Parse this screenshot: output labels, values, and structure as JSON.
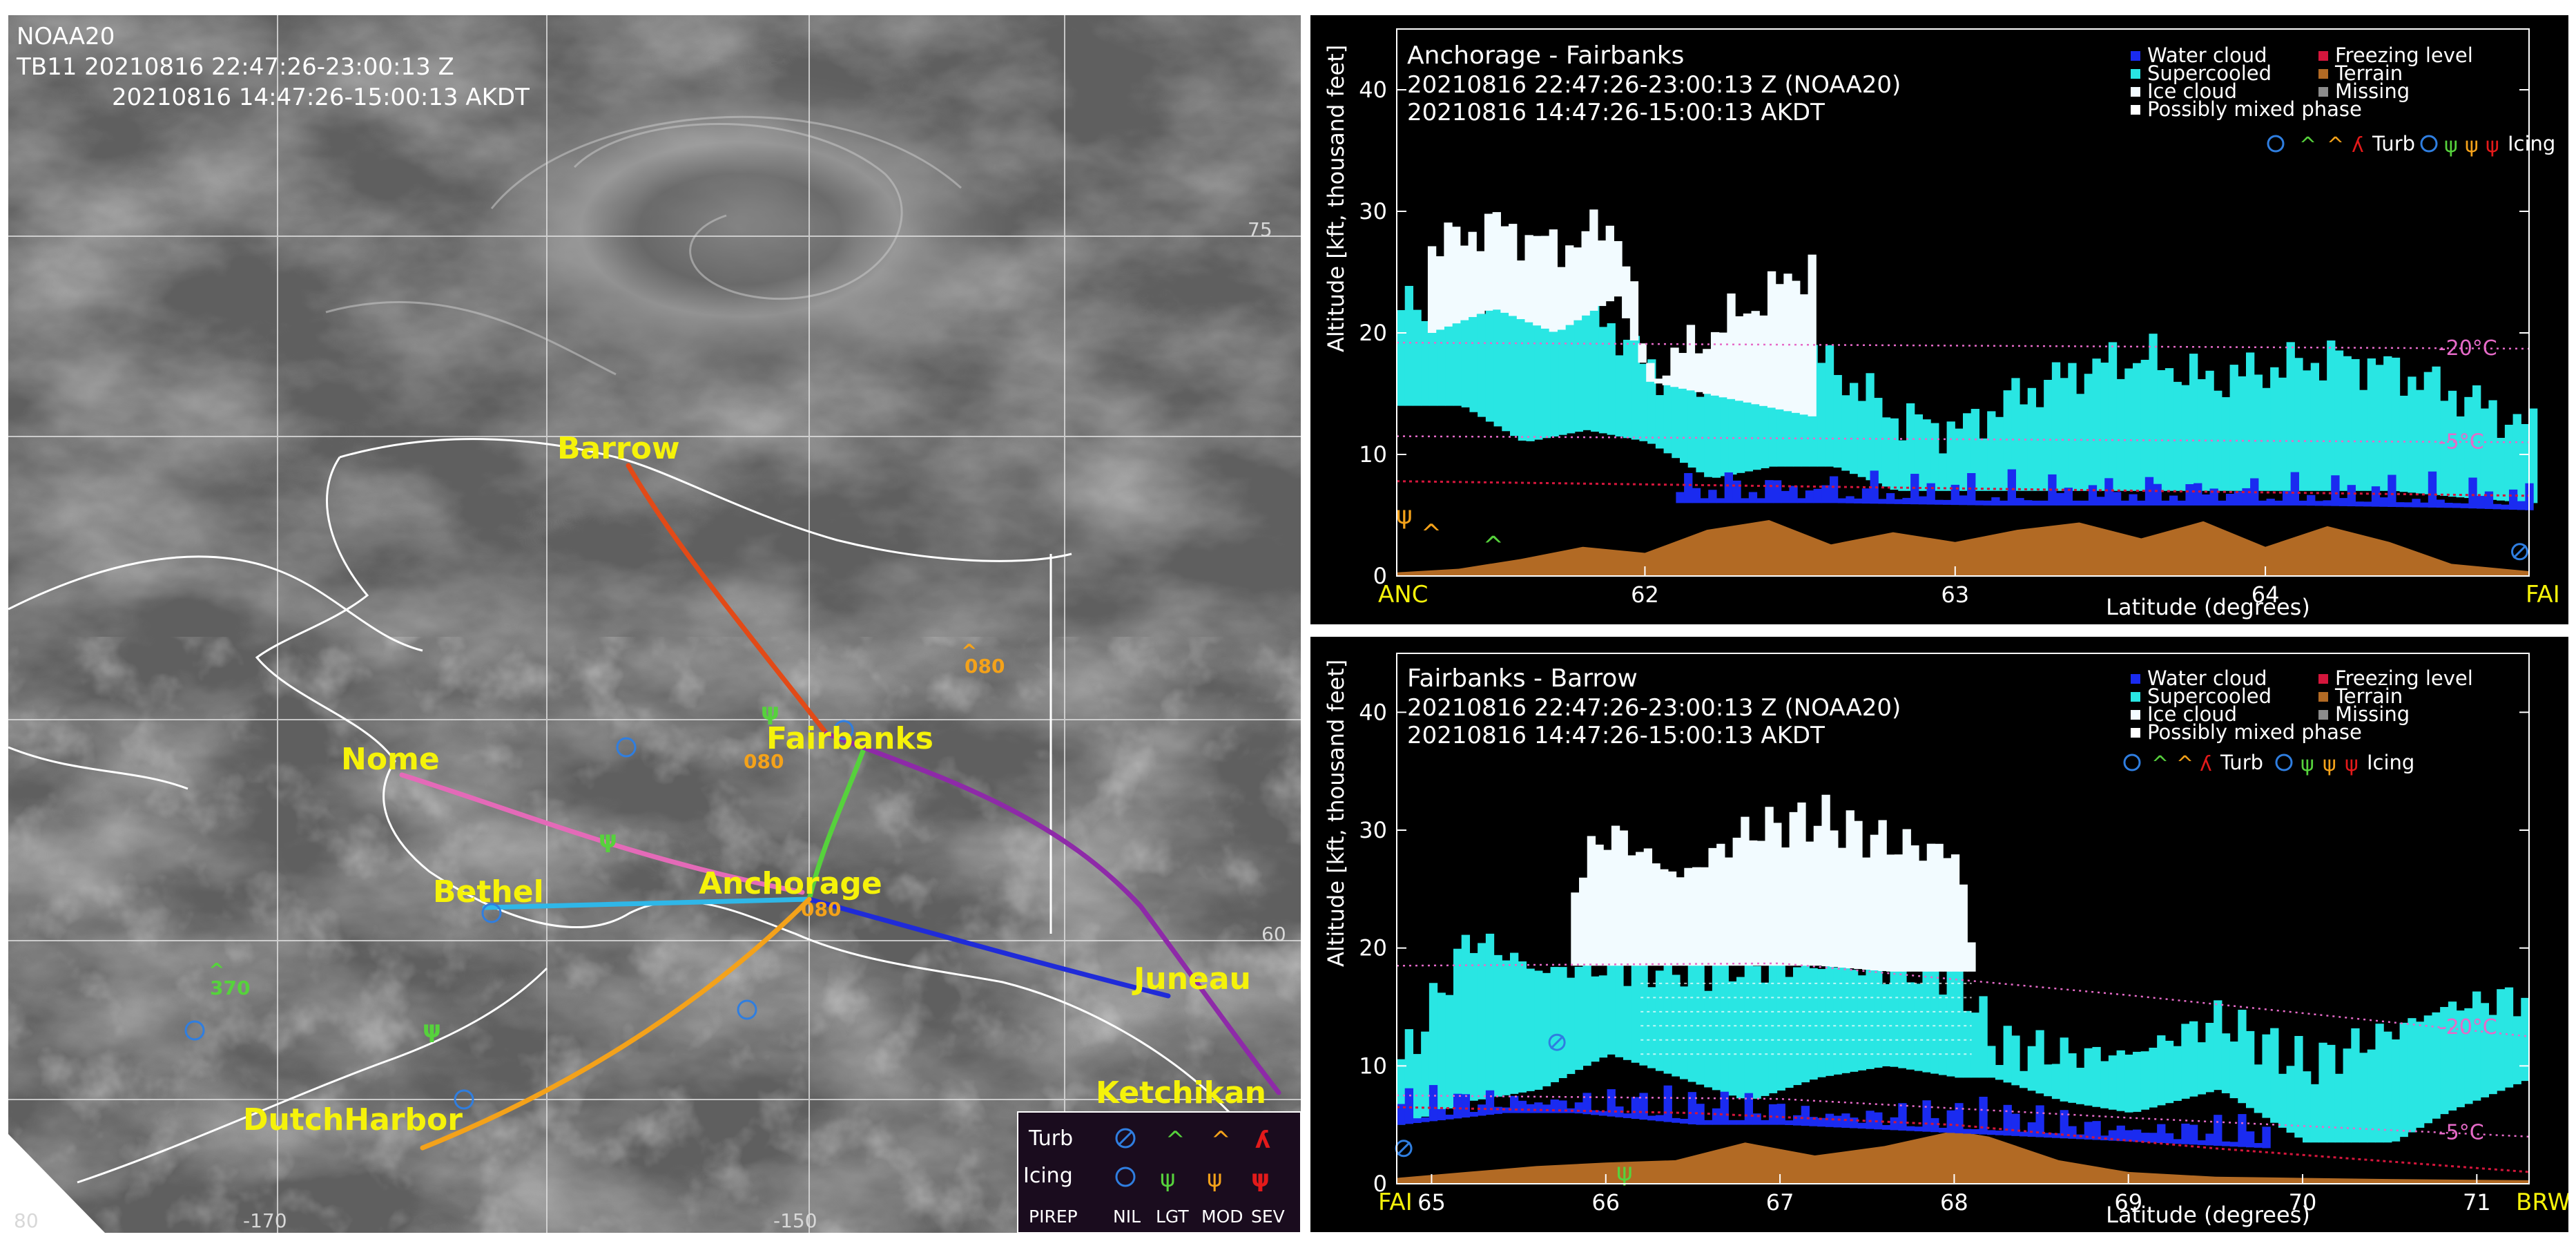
{
  "map": {
    "header": {
      "satellite": "NOAA20",
      "line1": "TB11 20210816 22:47:26-23:00:13 Z",
      "line2": "20210816 14:47:26-15:00:13 AKDT"
    },
    "lat_labels": [
      "75",
      "60",
      "-170",
      "-150",
      "80"
    ],
    "cities": [
      "Barrow",
      "Nome",
      "Fairbanks",
      "Bethel",
      "Anchorage",
      "Juneau",
      "DutchHarbor",
      "Ketchikan"
    ],
    "pirep_heights": [
      "080",
      "080",
      "370",
      "080"
    ],
    "routes": [
      {
        "name": "Fairbanks-Barrow",
        "color": "#e24a17"
      },
      {
        "name": "Nome-Anchorage",
        "color": "#e46ab8"
      },
      {
        "name": "Bethel-Anchorage",
        "color": "#2fb7e8"
      },
      {
        "name": "Anchorage-Fairbanks",
        "color": "#56d23c"
      },
      {
        "name": "Fairbanks-Ketchikan",
        "color": "#8e2aa8"
      },
      {
        "name": "Anchorage-Juneau",
        "color": "#1f2bd8"
      },
      {
        "name": "DutchHarbor-Anchorage",
        "color": "#f4a21a"
      }
    ],
    "legend": {
      "row1": "Turb",
      "row2": "Icing",
      "columns": [
        "PIREP",
        "NIL",
        "LGT",
        "MOD",
        "SEV"
      ]
    }
  },
  "colors": {
    "water_cloud": "#1a2bf0",
    "supercooled": "#29e6e3",
    "ice_cloud": "#f2fbff",
    "freezing_level": "#d4163c",
    "terrain": "#b26a24",
    "missing": "#8c8c8c",
    "temp_line": "#e66ac8"
  },
  "legend_profile": {
    "water_cloud": "Water cloud",
    "freezing_level": "Freezing level",
    "supercooled": "Supercooled",
    "terrain": "Terrain",
    "ice_cloud": "Ice cloud",
    "missing": "Missing",
    "mixed": "Possibly mixed phase",
    "turb": "Turb",
    "icing": "Icing"
  },
  "chart_data": [
    {
      "type": "area",
      "title": "Anchorage - Fairbanks",
      "subtitle1": "20210816 22:47:26-23:00:13 Z (NOAA20)",
      "subtitle2": "20210816 14:47:26-15:00:13 AKDT",
      "xlabel": "Latitude (degrees)",
      "ylabel": "Altitude [kft, thousand feet]",
      "xlim": [
        61.2,
        64.85
      ],
      "ylim": [
        0,
        45
      ],
      "xticks": [
        62,
        63,
        64
      ],
      "yticks": [
        0,
        10,
        20,
        30,
        40
      ],
      "start_label": "ANC",
      "end_label": "FAI",
      "iso_labels": [
        "-20°C",
        "-5°C"
      ],
      "isotherms": [
        {
          "name": "-20°C",
          "x": [
            61.2,
            64.85
          ],
          "y": [
            19.2,
            18.7
          ]
        },
        {
          "name": "-5°C",
          "x": [
            61.2,
            64.85
          ],
          "y": [
            11.5,
            11.0
          ]
        }
      ],
      "freezing_level": {
        "x": [
          61.2,
          64.85
        ],
        "y": [
          7.8,
          6.6
        ]
      },
      "terrain": {
        "x": [
          61.2,
          61.4,
          61.6,
          61.8,
          62.0,
          62.2,
          62.4,
          62.6,
          62.8,
          63.0,
          63.2,
          63.4,
          63.6,
          63.8,
          64.0,
          64.2,
          64.4,
          64.6,
          64.85
        ],
        "y": [
          0.3,
          0.6,
          1.4,
          2.4,
          1.9,
          3.8,
          4.6,
          2.6,
          3.6,
          2.8,
          3.8,
          4.4,
          3.1,
          4.5,
          2.4,
          4.1,
          2.8,
          1.0,
          0.4
        ]
      },
      "cloud_layers": [
        {
          "phase": "supercooled",
          "x": [
            61.2,
            61.4,
            61.6,
            61.8,
            62.0,
            62.2,
            62.4,
            62.6,
            62.8,
            63.0,
            63.2,
            63.4,
            63.6,
            63.8,
            64.0,
            64.2,
            64.4,
            64.6,
            64.85
          ],
          "base": [
            14.0,
            14.0,
            11.0,
            12.0,
            11.0,
            8.0,
            9.0,
            9.0,
            7.0,
            7.0,
            7.0,
            7.0,
            7.0,
            7.0,
            7.0,
            7.0,
            7.0,
            6.5,
            6.0
          ],
          "top": [
            22.0,
            23.0,
            24.0,
            23.0,
            17.0,
            16.0,
            20.0,
            17.0,
            13.0,
            12.0,
            15.0,
            17.0,
            18.0,
            16.0,
            17.0,
            18.0,
            17.0,
            15.0,
            12.0
          ]
        },
        {
          "phase": "ice",
          "x": [
            61.3,
            61.5,
            61.7,
            61.9,
            62.0,
            62.55
          ],
          "base": [
            20.0,
            22.0,
            20.0,
            23.0,
            16.0,
            13.0
          ],
          "top": [
            27.0,
            29.0,
            27.0,
            29.0,
            16.5,
            26.0
          ]
        },
        {
          "phase": "water",
          "x": [
            62.1,
            62.6,
            63.1,
            63.6,
            64.1,
            64.6,
            64.85
          ],
          "base": [
            6.0,
            6.0,
            5.8,
            5.8,
            5.8,
            5.6,
            5.4
          ],
          "top": [
            7.0,
            6.8,
            6.6,
            6.6,
            6.6,
            6.4,
            6.2
          ]
        }
      ],
      "pireps": [
        {
          "type": "turb",
          "severity": "MOD",
          "lat": 61.3,
          "alt": 3.5
        },
        {
          "type": "turb",
          "severity": "LGT",
          "lat": 61.5,
          "alt": 2.5
        },
        {
          "type": "icing",
          "severity": "MOD",
          "lat": 61.22,
          "alt": 5.0
        },
        {
          "type": "turb",
          "severity": "NIL",
          "lat": 64.82,
          "alt": 2.0
        }
      ]
    },
    {
      "type": "area",
      "title": "Fairbanks - Barrow",
      "subtitle1": "20210816 22:47:26-23:00:13 Z (NOAA20)",
      "subtitle2": "20210816 14:47:26-15:00:13 AKDT",
      "xlabel": "Latitude (degrees)",
      "ylabel": "Altitude [kft, thousand feet]",
      "xlim": [
        64.8,
        71.3
      ],
      "ylim": [
        0,
        45
      ],
      "xticks": [
        65,
        66,
        67,
        68,
        69,
        70,
        71
      ],
      "yticks": [
        0,
        10,
        20,
        30,
        40
      ],
      "start_label": "FAI",
      "end_label": "BRW",
      "iso_labels": [
        "-20°C",
        "-5°C"
      ],
      "isotherms": [
        {
          "name": "-20°C",
          "x": [
            64.8,
            67.0,
            69.0,
            71.3
          ],
          "y": [
            18.5,
            18.7,
            16.0,
            12.5
          ]
        },
        {
          "name": "-5°C",
          "x": [
            64.8,
            67.0,
            69.0,
            71.3
          ],
          "y": [
            7.5,
            7.2,
            5.6,
            4.0
          ]
        }
      ],
      "freezing_level": {
        "x": [
          64.8,
          66.5,
          68.0,
          69.5,
          71.3
        ],
        "y": [
          6.5,
          6.0,
          5.0,
          3.0,
          1.0
        ]
      },
      "terrain": {
        "x": [
          64.8,
          65.2,
          65.6,
          66.0,
          66.4,
          66.8,
          67.2,
          67.6,
          68.0,
          68.2,
          68.6,
          69.0,
          69.5,
          70.0,
          70.5,
          71.3
        ],
        "y": [
          0.5,
          1.0,
          1.5,
          1.8,
          2.0,
          3.5,
          2.4,
          3.2,
          4.5,
          4.0,
          2.0,
          1.0,
          0.6,
          0.5,
          0.4,
          0.3
        ]
      },
      "cloud_layers": [
        {
          "phase": "supercooled",
          "x": [
            64.8,
            65.2,
            65.6,
            66.0,
            66.4,
            66.8,
            67.2,
            67.6,
            68.0,
            68.2,
            68.6,
            69.0,
            69.5,
            70.0,
            70.5,
            70.8,
            71.3
          ],
          "base": [
            5.0,
            7.0,
            8.0,
            11.0,
            9.0,
            7.0,
            9.0,
            10.0,
            9.0,
            9.0,
            7.0,
            6.0,
            8.0,
            3.5,
            3.5,
            6.0,
            9.0
          ],
          "top": [
            10.0,
            21.0,
            18.0,
            18.5,
            18.5,
            18.5,
            18.5,
            18.0,
            18.0,
            12.0,
            11.0,
            11.0,
            14.0,
            10.0,
            13.0,
            15.0,
            16.0
          ],
          "mixed": true
        },
        {
          "phase": "ice",
          "x": [
            65.8,
            66.0,
            66.4,
            66.8,
            67.2,
            67.6,
            68.0,
            68.1
          ],
          "base": [
            18.5,
            18.5,
            18.5,
            18.5,
            18.5,
            18.0,
            18.0,
            18.0
          ],
          "top": [
            26.0,
            30.0,
            26.0,
            30.0,
            31.0,
            29.0,
            28.0,
            18.0
          ]
        },
        {
          "phase": "water",
          "x": [
            64.8,
            65.4,
            65.8,
            66.5,
            67.0,
            69.8
          ],
          "base": [
            5.0,
            6.0,
            6.0,
            5.0,
            5.0,
            3.0
          ],
          "top": [
            6.2,
            7.0,
            6.8,
            6.0,
            6.0,
            4.0
          ]
        }
      ],
      "pireps": [
        {
          "type": "turb",
          "severity": "NIL",
          "lat": 64.84,
          "alt": 3.0
        },
        {
          "type": "turb",
          "severity": "NIL",
          "lat": 65.72,
          "alt": 12.0
        },
        {
          "type": "icing",
          "severity": "LGT",
          "lat": 66.1,
          "alt": 1.0
        }
      ]
    }
  ]
}
